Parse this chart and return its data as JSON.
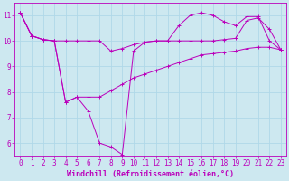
{
  "background_color": "#cde8f0",
  "grid_color": "#b0d8e8",
  "line_color": "#bb00bb",
  "xlabel": "Windchill (Refroidissement éolien,°C)",
  "xlim": [
    -0.5,
    23.5
  ],
  "ylim": [
    5.5,
    11.5
  ],
  "xticks": [
    0,
    1,
    2,
    3,
    4,
    5,
    6,
    7,
    8,
    9,
    10,
    11,
    12,
    13,
    14,
    15,
    16,
    17,
    18,
    19,
    20,
    21,
    22,
    23
  ],
  "yticks": [
    6,
    7,
    8,
    9,
    10,
    11
  ],
  "line1_x": [
    0,
    1,
    2,
    3,
    4,
    5,
    6,
    7,
    8,
    9,
    10,
    11,
    12,
    13,
    14,
    15,
    16,
    17,
    18,
    19,
    20,
    21,
    22,
    23
  ],
  "line1_y": [
    11.1,
    10.2,
    10.05,
    10.0,
    10.0,
    10.0,
    10.0,
    10.0,
    9.6,
    9.7,
    9.85,
    9.95,
    10.0,
    10.0,
    10.0,
    10.0,
    10.0,
    10.0,
    10.05,
    10.1,
    10.8,
    10.9,
    10.45,
    9.65
  ],
  "line2_x": [
    0,
    1,
    2,
    3,
    4,
    5,
    6,
    7,
    8,
    9,
    10,
    11,
    12,
    13,
    14,
    15,
    16,
    17,
    18,
    19,
    20,
    21,
    22,
    23
  ],
  "line2_y": [
    11.1,
    10.2,
    10.05,
    10.0,
    7.6,
    7.8,
    7.8,
    7.8,
    8.05,
    8.3,
    8.55,
    8.7,
    8.85,
    9.0,
    9.15,
    9.3,
    9.45,
    9.5,
    9.55,
    9.6,
    9.7,
    9.75,
    9.75,
    9.65
  ],
  "line3_x": [
    0,
    1,
    2,
    3,
    4,
    5,
    6,
    7,
    8,
    9,
    10,
    11,
    12,
    13,
    14,
    15,
    16,
    17,
    18,
    19,
    20,
    21,
    22,
    23
  ],
  "line3_y": [
    11.1,
    10.2,
    10.05,
    10.0,
    7.6,
    7.8,
    7.25,
    6.0,
    5.85,
    5.55,
    9.6,
    9.95,
    10.0,
    10.0,
    10.6,
    11.0,
    11.1,
    11.0,
    10.75,
    10.6,
    10.95,
    10.95,
    10.0,
    9.65
  ],
  "xlabel_fontsize": 6,
  "tick_fontsize": 5.5,
  "font_family": "monospace"
}
